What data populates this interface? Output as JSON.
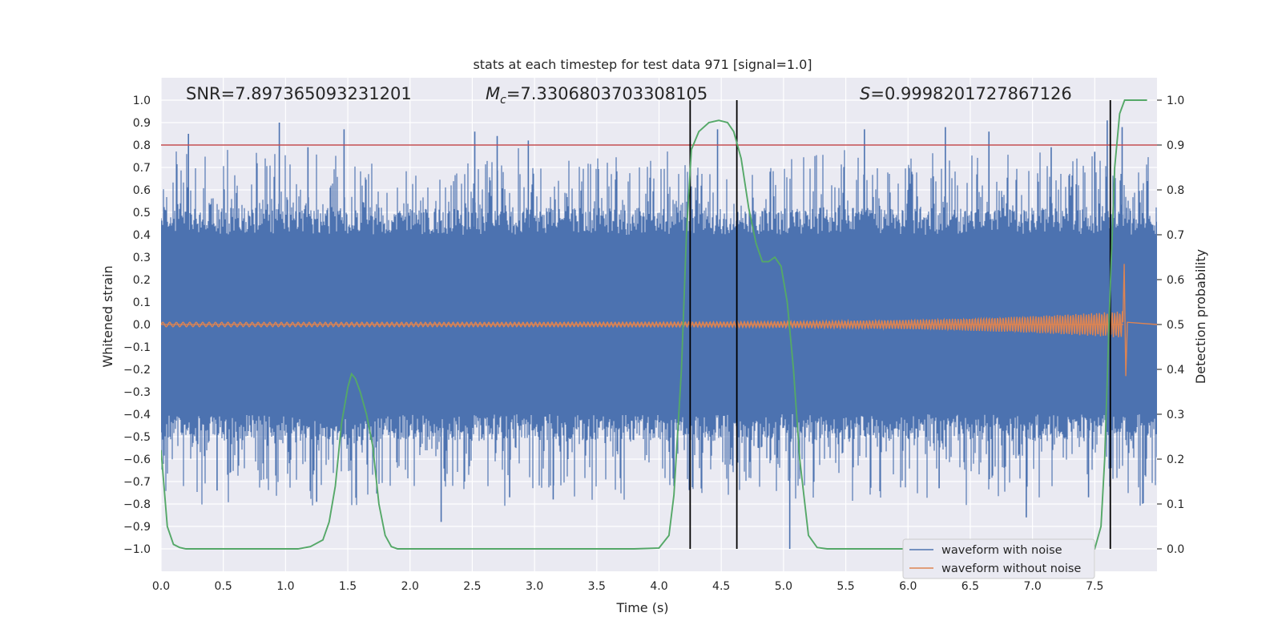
{
  "chart_data": {
    "type": "line",
    "title": "stats at each timestep for test data 971 [signal=1.0]",
    "xlabel": "Time (s)",
    "ylabel": "Whitened strain",
    "y2label": "Detection probability",
    "xlim": [
      0.0,
      8.0
    ],
    "ylim": [
      -1.1,
      1.1
    ],
    "y2lim": [
      -0.05,
      1.05
    ],
    "grid": true,
    "legend_position": "bottom-right",
    "x_tick_labels": [
      "0.0",
      "0.5",
      "1.0",
      "1.5",
      "2.0",
      "2.5",
      "3.0",
      "3.5",
      "4.0",
      "4.5",
      "5.0",
      "5.5",
      "6.0",
      "6.5",
      "7.0",
      "7.5"
    ],
    "y_tick_labels": [
      "1.0",
      "0.9",
      "0.8",
      "0.7",
      "0.6",
      "0.5",
      "0.4",
      "0.3",
      "0.2",
      "0.1",
      "0.0",
      "−0.1",
      "−0.2",
      "−0.3",
      "−0.4",
      "−0.5",
      "−0.6",
      "−0.7",
      "−0.8",
      "−0.9",
      "−1.0"
    ],
    "y2_tick_labels": [
      "1.0",
      "0.9",
      "0.8",
      "0.7",
      "0.6",
      "0.5",
      "0.4",
      "0.3",
      "0.2",
      "0.1",
      "0.0"
    ],
    "annotations": {
      "snr": "SNR=7.897365093231201",
      "mc_symbol": "M",
      "mc_subscript": "c",
      "mc_value": "=7.3306803703308105",
      "s_symbol": "S",
      "s_value": "=0.9998201727867126"
    },
    "threshold": {
      "value": 0.9,
      "axis": "right",
      "color": "#c44e52"
    },
    "vertical_markers": {
      "x": [
        4.25,
        4.625,
        7.625
      ],
      "color": "#000000"
    },
    "series": [
      {
        "name": "waveform with noise",
        "color": "#4c72b0",
        "kind": "noise",
        "description_values": {
          "core_abs": 0.4,
          "peak_max": 0.9,
          "peak_min": -1.0
        },
        "peaks": [
          [
            0.22,
            0.85
          ],
          [
            0.95,
            0.9
          ],
          [
            1.18,
            0.79
          ],
          [
            1.47,
            0.87
          ],
          [
            2.52,
            0.86
          ],
          [
            2.7,
            0.84
          ],
          [
            2.95,
            0.82
          ],
          [
            4.25,
            0.84
          ],
          [
            4.47,
            0.87
          ],
          [
            5.65,
            0.87
          ],
          [
            6.3,
            0.88
          ],
          [
            6.65,
            0.86
          ],
          [
            7.15,
            0.79
          ],
          [
            7.5,
            0.77
          ],
          [
            7.6,
            0.91
          ],
          [
            7.72,
            0.88
          ],
          [
            0.45,
            -0.74
          ],
          [
            1.25,
            -0.79
          ],
          [
            2.25,
            -0.88
          ],
          [
            2.8,
            -0.77
          ],
          [
            3.15,
            -0.78
          ],
          [
            4.12,
            -0.72
          ],
          [
            5.05,
            -1.0
          ],
          [
            6.25,
            -0.73
          ],
          [
            6.95,
            -0.86
          ],
          [
            7.45,
            -0.77
          ]
        ]
      },
      {
        "name": "waveform without noise",
        "color": "#dd8452",
        "kind": "chirp",
        "amplitude_start": 0.01,
        "amplitude_end": 0.06,
        "merger_time": 7.73,
        "merger_peak": 0.27,
        "merger_trough": -0.23
      },
      {
        "name": "detection probability",
        "color": "#55a868",
        "axis": "right",
        "x": [
          0.0,
          0.05,
          0.1,
          0.15,
          0.2,
          0.3,
          0.5,
          0.7,
          0.9,
          1.1,
          1.2,
          1.3,
          1.35,
          1.4,
          1.45,
          1.5,
          1.53,
          1.56,
          1.6,
          1.65,
          1.7,
          1.75,
          1.8,
          1.85,
          1.9,
          2.0,
          3.5,
          3.8,
          4.0,
          4.08,
          4.12,
          4.18,
          4.22,
          4.26,
          4.32,
          4.4,
          4.48,
          4.55,
          4.6,
          4.66,
          4.72,
          4.78,
          4.83,
          4.88,
          4.93,
          4.98,
          5.03,
          5.08,
          5.13,
          5.2,
          5.27,
          5.35,
          5.5,
          6.0,
          7.0,
          7.5,
          7.55,
          7.58,
          7.62,
          7.66,
          7.7,
          7.74,
          7.78,
          7.85,
          7.92
        ],
        "values": [
          0.22,
          0.05,
          0.01,
          0.003,
          0.0,
          0.0,
          0.0,
          0.0,
          0.0,
          0.0,
          0.005,
          0.02,
          0.06,
          0.14,
          0.28,
          0.36,
          0.39,
          0.38,
          0.35,
          0.3,
          0.23,
          0.1,
          0.03,
          0.005,
          0.0,
          0.0,
          0.0,
          0.0,
          0.002,
          0.03,
          0.12,
          0.4,
          0.7,
          0.89,
          0.93,
          0.95,
          0.955,
          0.95,
          0.93,
          0.87,
          0.76,
          0.68,
          0.64,
          0.64,
          0.65,
          0.63,
          0.55,
          0.4,
          0.2,
          0.03,
          0.003,
          0.0,
          0.0,
          0.0,
          0.0,
          0.0,
          0.05,
          0.2,
          0.55,
          0.85,
          0.97,
          1.0,
          1.0,
          1.0,
          1.0
        ]
      }
    ]
  }
}
